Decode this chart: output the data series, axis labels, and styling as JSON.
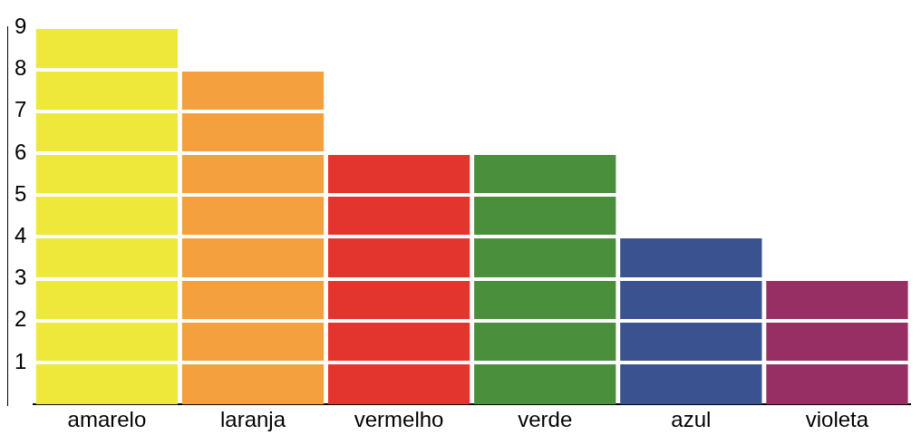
{
  "chart_data": {
    "type": "bar",
    "categories": [
      "amarelo",
      "laranja",
      "vermelho",
      "verde",
      "azul",
      "violeta"
    ],
    "values": [
      9,
      8,
      6,
      6,
      4,
      3
    ],
    "colors": [
      "#ede83a",
      "#f4a03f",
      "#e3352e",
      "#4a8f3b",
      "#3b5291",
      "#982f64"
    ],
    "ylim": [
      0,
      9
    ],
    "yticks": [
      1,
      2,
      3,
      4,
      5,
      6,
      7,
      8,
      9
    ],
    "grid": "y",
    "legend": false
  }
}
